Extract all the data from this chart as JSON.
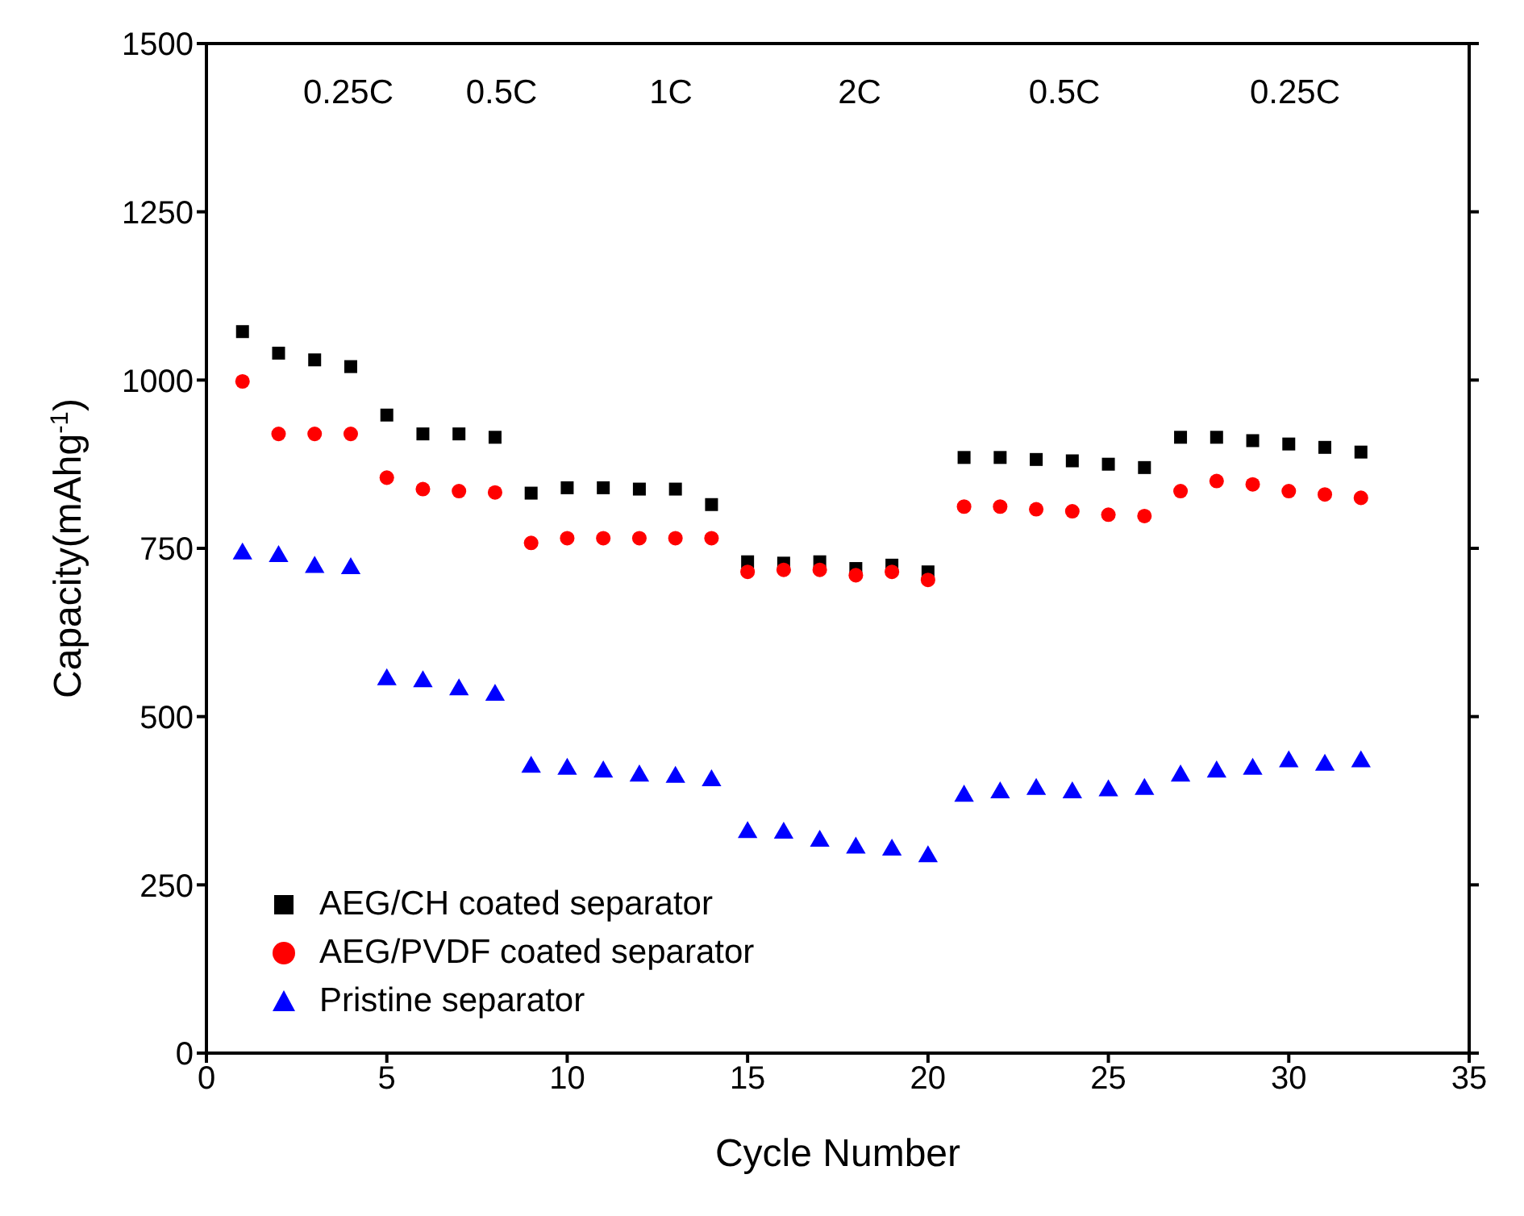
{
  "chart_data": {
    "type": "scatter",
    "xlabel": "Cycle Number",
    "ylabel": "Capacity(mAhg$^{-1}$)",
    "x": [
      1,
      2,
      3,
      4,
      5,
      6,
      7,
      8,
      9,
      10,
      11,
      12,
      13,
      14,
      15,
      16,
      17,
      18,
      19,
      20,
      21,
      22,
      23,
      24,
      25,
      26,
      27,
      28,
      29,
      30,
      31,
      32
    ],
    "series": [
      {
        "name": "AEG/CH coated separator",
        "color": "#000000",
        "marker": "square",
        "values": [
          1072,
          1040,
          1030,
          1020,
          948,
          920,
          920,
          915,
          832,
          840,
          840,
          838,
          838,
          815,
          730,
          728,
          730,
          720,
          725,
          715,
          885,
          885,
          882,
          880,
          875,
          870,
          915,
          915,
          910,
          905,
          900,
          893
        ]
      },
      {
        "name": "AEG/PVDF coated separator",
        "color": "#ff0000",
        "marker": "circle",
        "values": [
          998,
          920,
          920,
          920,
          855,
          838,
          835,
          833,
          758,
          765,
          765,
          765,
          765,
          765,
          715,
          718,
          718,
          710,
          715,
          703,
          812,
          812,
          808,
          805,
          800,
          798,
          835,
          850,
          845,
          835,
          830,
          825
        ]
      },
      {
        "name": "Pristine separator",
        "color": "#0000ff",
        "marker": "triangle",
        "values": [
          742,
          738,
          722,
          720,
          555,
          552,
          540,
          532,
          425,
          422,
          418,
          412,
          410,
          405,
          328,
          327,
          315,
          305,
          302,
          292,
          382,
          387,
          392,
          387,
          390,
          392,
          412,
          418,
          422,
          433,
          428,
          433
        ]
      }
    ],
    "annotations": [
      "0.25C",
      "0.5C",
      "1C",
      "2C",
      "0.5C",
      "0.25C"
    ],
    "xlim": [
      0,
      35
    ],
    "xticks": [
      0,
      5,
      10,
      15,
      20,
      25,
      30,
      35
    ],
    "ylim": [
      0,
      1500
    ],
    "yticks": [
      0,
      250,
      500,
      750,
      1000,
      1250,
      1500
    ],
    "legend": "bottom left"
  }
}
